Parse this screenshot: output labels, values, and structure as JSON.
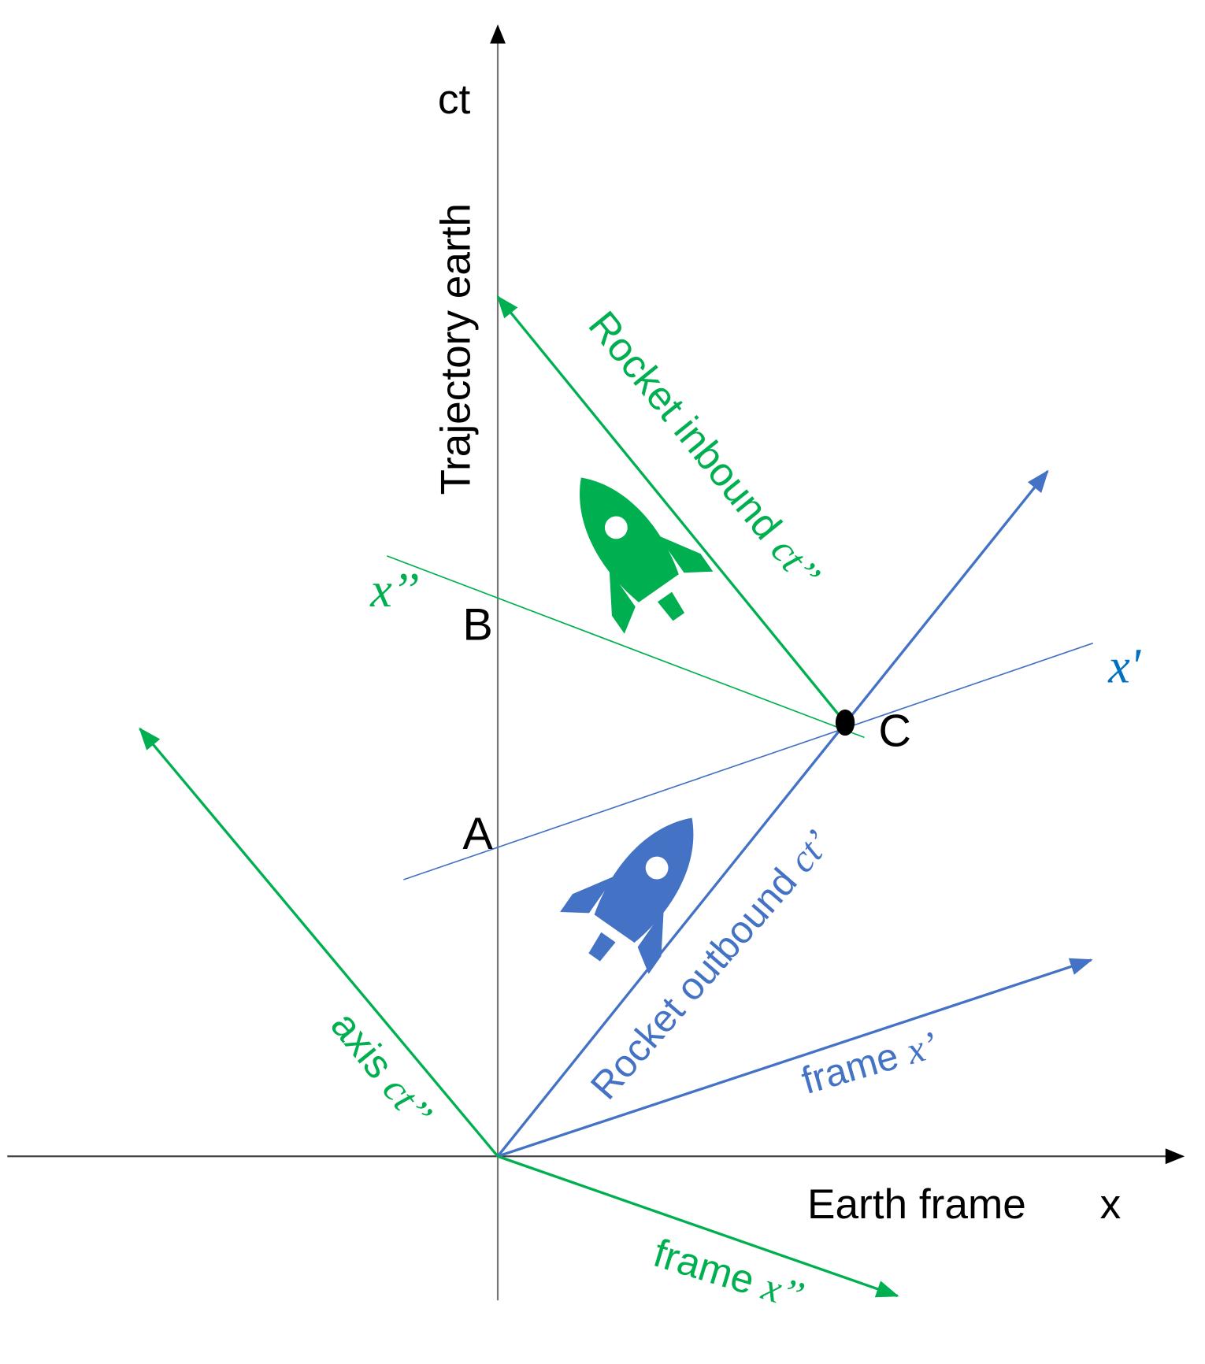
{
  "axes": {
    "vertical": "ct",
    "vertical_title": "Trajectory earth",
    "horizontal_title": "Earth frame",
    "horizontal": "x"
  },
  "points": {
    "a": "A",
    "b": "B",
    "c": "C"
  },
  "lines": {
    "rocket_inbound": {
      "text": "Rocket inbound",
      "symbol": "ct’’"
    },
    "rocket_outbound": {
      "text": "Rocket outbound",
      "symbol": "ct’"
    },
    "frame_x_prime": {
      "text": "frame",
      "symbol": "x’"
    },
    "axis_ct_double_prime": {
      "text": "axis",
      "symbol": "ct’’"
    },
    "frame_x_double_prime": {
      "text": "frame",
      "symbol": "x’’"
    },
    "x_prime_line": "x'",
    "x_double_prime_line": "x’’"
  }
}
